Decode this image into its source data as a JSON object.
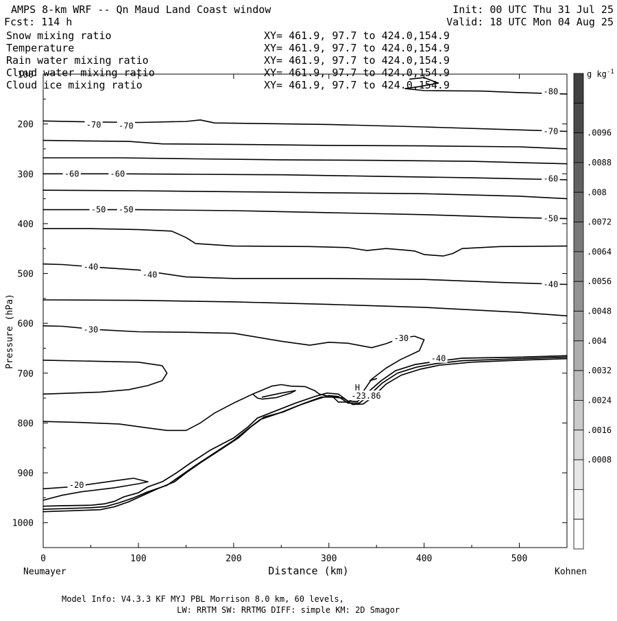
{
  "header": {
    "title": "AMPS 8-km WRF -- Qn Maud Land Coast window",
    "fcst": "Fcst:  114 h",
    "init": "Init: 00 UTC Thu 31 Jul 25",
    "valid": "Valid: 18 UTC Mon 04 Aug 25"
  },
  "variables": [
    {
      "name": "Snow mixing ratio",
      "xy": "XY= 461.9, 97.7 to 424.0,154.9",
      "color": "#000000"
    },
    {
      "name": "Temperature",
      "xy": "XY= 461.9, 97.7 to 424.0,154.9",
      "color": "#000000"
    },
    {
      "name": "Rain water mixing ratio",
      "xy": "XY= 461.9, 97.7 to 424.0,154.9",
      "color": "#e8141e"
    },
    {
      "name": "Cloud water mixing ratio",
      "xy": "XY= 461.9, 97.7 to 424.0,154.9",
      "color": "#1c1ca8"
    },
    {
      "name": "Cloud ice mixing ratio",
      "xy": "XY= 461.9, 97.7 to 424.0,154.9",
      "color": "#000000"
    }
  ],
  "chart_data": {
    "type": "line",
    "xlabel": "Distance (km)",
    "ylabel": "Pressure (hPa)",
    "xlim": [
      0,
      550
    ],
    "ylim": [
      1050,
      100
    ],
    "x_ticks": [
      0,
      100,
      200,
      300,
      400,
      500
    ],
    "y_ticks": [
      100,
      200,
      300,
      400,
      500,
      600,
      700,
      800,
      900,
      1000
    ],
    "x_end_labels": {
      "left": "Neumayer",
      "right": "Kohnen"
    },
    "grid": false,
    "contour_labels": [
      {
        "text": "-80",
        "x": 533,
        "p": 135
      },
      {
        "text": "-70",
        "x": 53,
        "p": 202
      },
      {
        "text": "-70",
        "x": 87,
        "p": 204
      },
      {
        "text": "-70",
        "x": 533,
        "p": 215
      },
      {
        "text": "-60",
        "x": 30,
        "p": 300
      },
      {
        "text": "-60",
        "x": 78,
        "p": 300
      },
      {
        "text": "-60",
        "x": 533,
        "p": 310
      },
      {
        "text": "-50",
        "x": 58,
        "p": 372
      },
      {
        "text": "-50",
        "x": 87,
        "p": 372
      },
      {
        "text": "-50",
        "x": 533,
        "p": 390
      },
      {
        "text": "-40",
        "x": 50,
        "p": 487
      },
      {
        "text": "-40",
        "x": 112,
        "p": 503
      },
      {
        "text": "-40",
        "x": 533,
        "p": 522
      },
      {
        "text": "-30",
        "x": 50,
        "p": 613
      },
      {
        "text": "-30",
        "x": 376,
        "p": 630
      },
      {
        "text": "-40",
        "x": 415,
        "p": 671
      },
      {
        "text": "-20",
        "x": 35,
        "p": 925
      },
      {
        "text": "H",
        "x": 330,
        "p": 729
      },
      {
        "text": "-23.86",
        "x": 339,
        "p": 746
      }
    ],
    "temperature_contours": [
      {
        "level": "-80",
        "points": [
          [
            385,
            110
          ],
          [
            400,
            107
          ],
          [
            415,
            118
          ],
          [
            395,
            125
          ],
          [
            380,
            129
          ],
          [
            400,
            133
          ],
          [
            460,
            134
          ],
          [
            500,
            137
          ],
          [
            550,
            140
          ]
        ]
      },
      {
        "level": "-70a",
        "points": [
          [
            0,
            194
          ],
          [
            50,
            196
          ],
          [
            100,
            197
          ],
          [
            150,
            195
          ],
          [
            165,
            192
          ],
          [
            180,
            198
          ],
          [
            300,
            201
          ],
          [
            400,
            206
          ],
          [
            500,
            212
          ],
          [
            550,
            215
          ]
        ]
      },
      {
        "level": "-70b",
        "points": [
          [
            0,
            233
          ],
          [
            40,
            234
          ],
          [
            90,
            235
          ],
          [
            125,
            240
          ],
          [
            200,
            241
          ],
          [
            300,
            243
          ],
          [
            400,
            244
          ],
          [
            500,
            246
          ],
          [
            550,
            250
          ]
        ]
      },
      {
        "level": "-60a",
        "points": [
          [
            0,
            268
          ],
          [
            80,
            268
          ],
          [
            160,
            270
          ],
          [
            250,
            272
          ],
          [
            350,
            273
          ],
          [
            450,
            275
          ],
          [
            550,
            280
          ]
        ]
      },
      {
        "level": "-60b",
        "points": [
          [
            0,
            300
          ],
          [
            80,
            300
          ],
          [
            160,
            301
          ],
          [
            250,
            302
          ],
          [
            350,
            305
          ],
          [
            450,
            308
          ],
          [
            550,
            312
          ]
        ]
      },
      {
        "level": "-50a",
        "points": [
          [
            0,
            333
          ],
          [
            100,
            334
          ],
          [
            200,
            336
          ],
          [
            300,
            338
          ],
          [
            400,
            340
          ],
          [
            500,
            345
          ],
          [
            550,
            350
          ]
        ]
      },
      {
        "level": "-50b",
        "points": [
          [
            0,
            372
          ],
          [
            100,
            372
          ],
          [
            200,
            374
          ],
          [
            300,
            378
          ],
          [
            400,
            382
          ],
          [
            500,
            388
          ],
          [
            550,
            390
          ]
        ]
      },
      {
        "level": "-50c",
        "points": [
          [
            0,
            410
          ],
          [
            50,
            410
          ],
          [
            100,
            412
          ],
          [
            135,
            415
          ],
          [
            150,
            428
          ],
          [
            160,
            440
          ],
          [
            200,
            445
          ],
          [
            280,
            446
          ],
          [
            320,
            448
          ],
          [
            340,
            454
          ],
          [
            360,
            450
          ],
          [
            380,
            453
          ],
          [
            390,
            455
          ],
          [
            400,
            462
          ],
          [
            420,
            465
          ],
          [
            430,
            460
          ],
          [
            440,
            450
          ],
          [
            480,
            446
          ],
          [
            550,
            445
          ]
        ]
      },
      {
        "level": "-40a",
        "points": [
          [
            0,
            481
          ],
          [
            20,
            482
          ],
          [
            60,
            488
          ],
          [
            100,
            493
          ],
          [
            150,
            507
          ],
          [
            200,
            510
          ],
          [
            300,
            510
          ],
          [
            400,
            512
          ],
          [
            480,
            518
          ],
          [
            550,
            522
          ]
        ]
      },
      {
        "level": "-40b",
        "points": [
          [
            0,
            553
          ],
          [
            100,
            554
          ],
          [
            200,
            557
          ],
          [
            300,
            562
          ],
          [
            400,
            568
          ],
          [
            500,
            578
          ],
          [
            550,
            585
          ]
        ]
      },
      {
        "level": "-30a",
        "points": [
          [
            0,
            605
          ],
          [
            20,
            606
          ],
          [
            60,
            613
          ],
          [
            100,
            617
          ],
          [
            150,
            618
          ],
          [
            200,
            620
          ],
          [
            250,
            636
          ],
          [
            280,
            644
          ],
          [
            300,
            638
          ],
          [
            320,
            640
          ],
          [
            345,
            649
          ],
          [
            360,
            641
          ],
          [
            375,
            630
          ],
          [
            390,
            626
          ],
          [
            400,
            633
          ],
          [
            395,
            655
          ],
          [
            375,
            673
          ],
          [
            360,
            690
          ],
          [
            345,
            712
          ],
          [
            335,
            740
          ],
          [
            320,
            758
          ],
          [
            310,
            758
          ]
        ]
      },
      {
        "level": "-30b",
        "points": [
          [
            0,
            674
          ],
          [
            100,
            678
          ],
          [
            125,
            685
          ],
          [
            130,
            700
          ],
          [
            125,
            715
          ],
          [
            110,
            725
          ],
          [
            90,
            733
          ],
          [
            60,
            738
          ],
          [
            0,
            742
          ]
        ]
      },
      {
        "level": "-30c",
        "points": [
          [
            350,
            711
          ],
          [
            343,
            715
          ]
        ]
      },
      {
        "level": "-30d",
        "points": [
          [
            0,
            797
          ],
          [
            40,
            799
          ],
          [
            80,
            802
          ],
          [
            110,
            810
          ],
          [
            130,
            815
          ],
          [
            150,
            815
          ],
          [
            165,
            800
          ],
          [
            180,
            780
          ],
          [
            200,
            760
          ],
          [
            220,
            742
          ],
          [
            240,
            726
          ],
          [
            250,
            723
          ],
          [
            260,
            726
          ],
          [
            275,
            727
          ],
          [
            285,
            735
          ],
          [
            290,
            742
          ],
          [
            305,
            749
          ],
          [
            310,
            758
          ]
        ]
      },
      {
        "level": "-30e",
        "points": [
          [
            220,
            742
          ],
          [
            225,
            750
          ],
          [
            230,
            752
          ],
          [
            245,
            749
          ],
          [
            260,
            740
          ],
          [
            265,
            735
          ],
          [
            250,
            740
          ],
          [
            230,
            748
          ]
        ]
      },
      {
        "level": "-20",
        "points": [
          [
            0,
            932
          ],
          [
            30,
            928
          ],
          [
            60,
            920
          ],
          [
            90,
            912
          ],
          [
            95,
            911
          ],
          [
            110,
            918
          ],
          [
            100,
            922
          ],
          [
            75,
            930
          ],
          [
            40,
            938
          ],
          [
            20,
            945
          ],
          [
            0,
            955
          ]
        ]
      }
    ],
    "terrain_contours": [
      {
        "level": "-23.86",
        "points": [
          [
            0,
            967
          ],
          [
            20,
            966
          ],
          [
            50,
            965
          ],
          [
            65,
            962
          ],
          [
            75,
            957
          ],
          [
            85,
            948
          ],
          [
            100,
            940
          ],
          [
            110,
            928
          ],
          [
            125,
            918
          ],
          [
            140,
            900
          ],
          [
            155,
            880
          ],
          [
            175,
            855
          ],
          [
            200,
            830
          ],
          [
            215,
            808
          ],
          [
            225,
            790
          ],
          [
            245,
            775
          ],
          [
            265,
            760
          ],
          [
            285,
            747
          ],
          [
            298,
            740
          ],
          [
            310,
            742
          ],
          [
            320,
            756
          ],
          [
            330,
            757
          ],
          [
            340,
            740
          ],
          [
            355,
            715
          ],
          [
            370,
            695
          ],
          [
            390,
            683
          ],
          [
            410,
            677
          ],
          [
            440,
            670
          ],
          [
            500,
            668
          ],
          [
            550,
            665
          ]
        ]
      },
      {
        "level": "-23.86b",
        "points": [
          [
            0,
            973
          ],
          [
            20,
            972
          ],
          [
            50,
            970
          ],
          [
            65,
            968
          ],
          [
            80,
            960
          ],
          [
            95,
            950
          ],
          [
            110,
            938
          ],
          [
            130,
            925
          ],
          [
            145,
            905
          ],
          [
            160,
            885
          ],
          [
            180,
            860
          ],
          [
            200,
            835
          ],
          [
            215,
            812
          ],
          [
            228,
            793
          ],
          [
            248,
            780
          ],
          [
            268,
            765
          ],
          [
            288,
            752
          ],
          [
            300,
            745
          ],
          [
            310,
            747
          ],
          [
            320,
            760
          ],
          [
            332,
            760
          ],
          [
            342,
            745
          ],
          [
            356,
            720
          ],
          [
            372,
            700
          ],
          [
            392,
            688
          ],
          [
            412,
            681
          ],
          [
            440,
            675
          ],
          [
            500,
            671
          ],
          [
            550,
            668
          ]
        ]
      },
      {
        "level": "-23.86c",
        "points": [
          [
            0,
            978
          ],
          [
            30,
            976
          ],
          [
            60,
            974
          ],
          [
            75,
            968
          ],
          [
            90,
            958
          ],
          [
            105,
            945
          ],
          [
            120,
            932
          ],
          [
            138,
            918
          ],
          [
            150,
            900
          ],
          [
            165,
            880
          ],
          [
            185,
            855
          ],
          [
            205,
            830
          ],
          [
            218,
            808
          ],
          [
            232,
            788
          ],
          [
            252,
            778
          ],
          [
            272,
            762
          ],
          [
            292,
            748
          ],
          [
            303,
            748
          ],
          [
            315,
            750
          ],
          [
            325,
            763
          ],
          [
            336,
            762
          ],
          [
            346,
            748
          ],
          [
            360,
            722
          ],
          [
            376,
            704
          ],
          [
            396,
            692
          ],
          [
            416,
            684
          ],
          [
            450,
            678
          ],
          [
            500,
            674
          ],
          [
            550,
            671
          ]
        ]
      }
    ],
    "colorbar": {
      "unit_label": "g kg",
      "unit_exp": "-1",
      "labels": [
        ".0096",
        ".0088",
        ".008",
        ".0072",
        ".0064",
        ".0056",
        ".0048",
        ".004",
        ".0032",
        ".0024",
        ".0016",
        ".0008"
      ],
      "colors": [
        "#404040",
        "#4a4a4a",
        "#555555",
        "#606060",
        "#6c6c6c",
        "#787878",
        "#858585",
        "#929292",
        "#a0a0a0",
        "#aeaeae",
        "#bcbcbc",
        "#cacaca",
        "#d8d8d8",
        "#e6e6e6",
        "#f2f2f2",
        "#ffffff"
      ]
    }
  },
  "footer": {
    "line1": "Model Info: V4.3.3   KF     MYJ PBL  Morrison           8.0 km,  60 levels,",
    "line2": "LW: RRTM SW: RRTMG   DIFF: simple KM: 2D Smagor"
  }
}
